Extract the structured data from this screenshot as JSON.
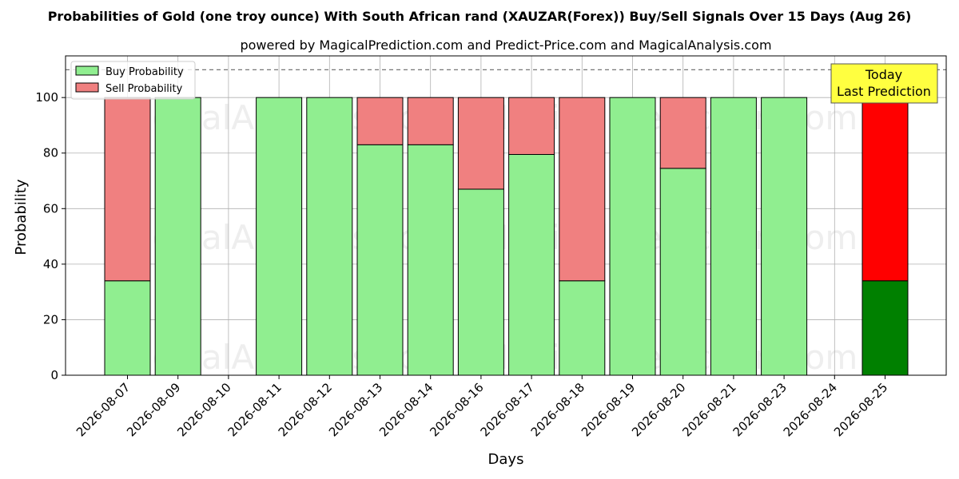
{
  "chart_data": {
    "type": "bar",
    "stacked": true,
    "title": "Probabilities of Gold (one troy ounce) With South African rand (XAUZAR(Forex)) Buy/Sell Signals Over 15 Days (Aug 26)",
    "subtitle": "powered by MagicalPrediction.com and Predict-Price.com and MagicalAnalysis.com",
    "xlabel": "Days",
    "ylabel": "Probability",
    "ylim": [
      0,
      115
    ],
    "yticks": [
      0,
      20,
      40,
      60,
      80,
      100
    ],
    "reference_line": 110,
    "grid": true,
    "legend_position": "top-left",
    "categories": [
      "2026-08-07",
      "2026-08-09",
      "2026-08-10",
      "2026-08-11",
      "2026-08-12",
      "2026-08-13",
      "2026-08-14",
      "2026-08-16",
      "2026-08-17",
      "2026-08-18",
      "2026-08-19",
      "2026-08-20",
      "2026-08-21",
      "2026-08-23",
      "2026-08-24",
      "2026-08-25"
    ],
    "series": [
      {
        "name": "Buy Probability",
        "color": "#90ee90",
        "values": [
          34,
          100,
          0,
          100,
          100,
          83,
          83,
          67,
          79.5,
          34,
          100,
          74.5,
          100,
          100,
          0,
          34
        ]
      },
      {
        "name": "Sell Probability",
        "color": "#f08080",
        "values": [
          66,
          0,
          0,
          0,
          0,
          17,
          17,
          33,
          20.5,
          66,
          0,
          25.5,
          0,
          0,
          0,
          66
        ]
      }
    ],
    "highlight": {
      "index": 15,
      "buy_color": "#008000",
      "sell_color": "#ff0000"
    },
    "annotation": {
      "line1": "Today",
      "line2": "Last Prediction",
      "color": "#ffff40"
    },
    "watermarks": [
      "MagicalAnalysis.com",
      "MagicalPrediction.com"
    ]
  }
}
